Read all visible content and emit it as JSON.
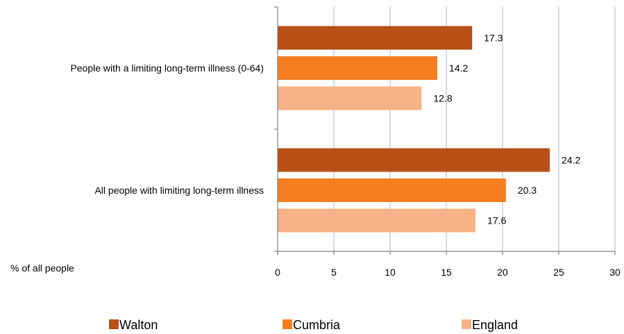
{
  "chart_data": {
    "type": "bar",
    "orientation": "horizontal",
    "categories": [
      "People with a limiting long-term illness (0-64)",
      "All people  with limiting long-term illness"
    ],
    "series": [
      {
        "name": "Walton",
        "color": "#b74f17",
        "values": [
          17.3,
          24.2
        ]
      },
      {
        "name": "Cumbria",
        "color": "#f47e20",
        "values": [
          14.2,
          20.3
        ]
      },
      {
        "name": "England",
        "color": "#f7b287",
        "values": [
          12.8,
          17.6
        ]
      }
    ],
    "xlabel": "% of all people",
    "xlim": [
      0,
      30
    ],
    "xticks": [
      0,
      5,
      10,
      15,
      20,
      25,
      30
    ],
    "grid": "vertical",
    "grid_color": "#b8c9dc",
    "legend": "bottom"
  }
}
